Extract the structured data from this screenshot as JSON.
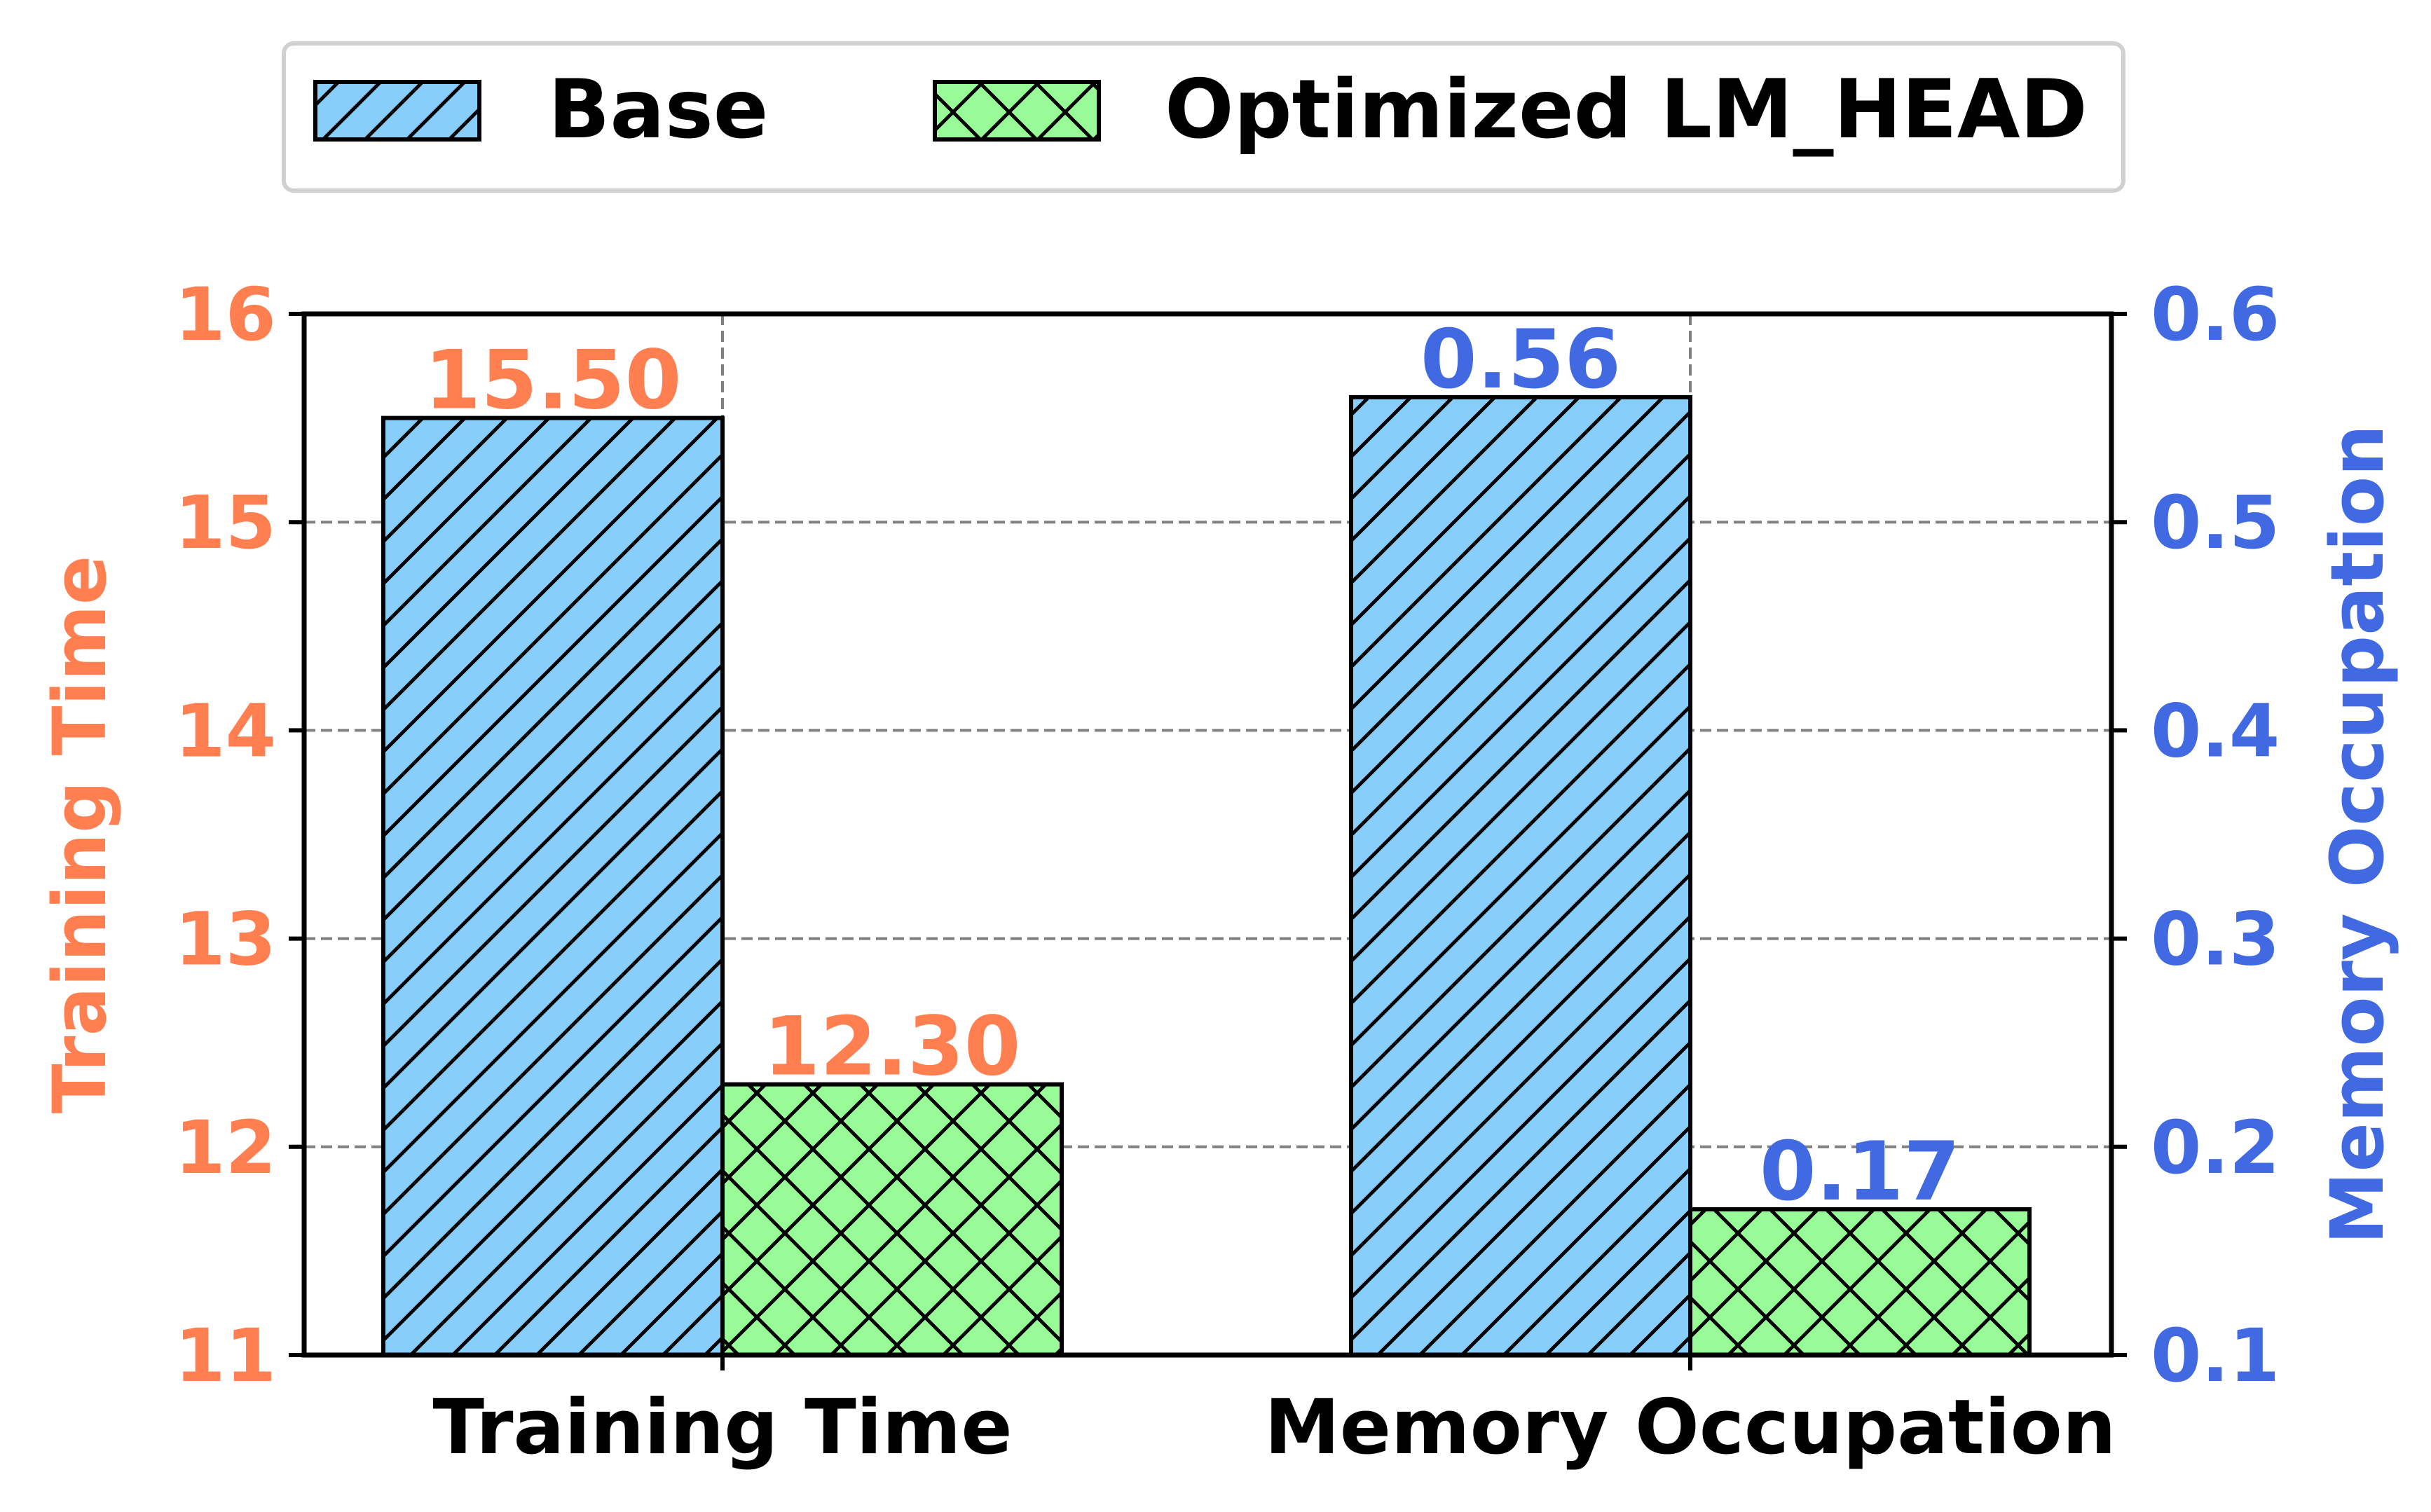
{
  "colors": {
    "left_axis": "#FF7F50",
    "right_axis": "#4169E1",
    "base_fill": "#87CEFA",
    "optimized_fill": "#98FB98",
    "bar_edge": "#000000",
    "grid": "#808080"
  },
  "chart_data": {
    "type": "bar",
    "title": "",
    "categories": [
      "Training Time",
      "Memory Occupation"
    ],
    "series": [
      {
        "name": "Base",
        "hatch": "diagonal",
        "color": "#87CEFA",
        "values": [
          15.5,
          0.56
        ]
      },
      {
        "name": "Optimized LM_HEAD",
        "hatch": "cross",
        "color": "#98FB98",
        "values": [
          12.3,
          0.17
        ]
      }
    ],
    "data_labels": [
      [
        "15.50",
        "0.56"
      ],
      [
        "12.30",
        "0.17"
      ]
    ],
    "category_axis": [
      "left",
      "right"
    ],
    "y_left": {
      "label": "Training Time",
      "lim": [
        11,
        16
      ],
      "ticks": [
        "11",
        "12",
        "13",
        "14",
        "15",
        "16"
      ]
    },
    "y_right": {
      "label": "Memory Occupation",
      "lim": [
        0.1,
        0.6
      ],
      "ticks": [
        "0.1",
        "0.2",
        "0.3",
        "0.4",
        "0.5",
        "0.6"
      ]
    },
    "grid": "dashed, both axes",
    "legend": {
      "placement": "top-center",
      "entries": [
        "Base",
        "Optimized LM_HEAD"
      ]
    }
  }
}
